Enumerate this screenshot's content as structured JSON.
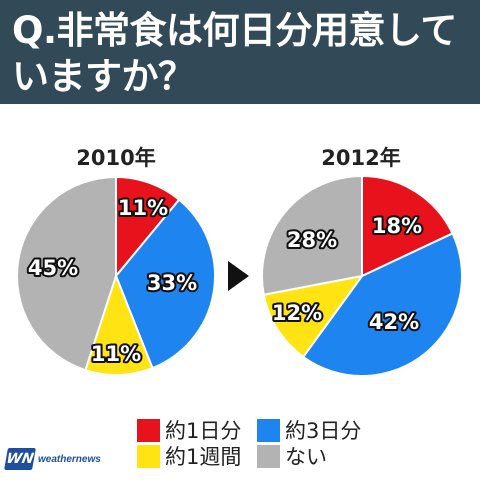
{
  "header": {
    "question": "Q.非常食は何日分用意していますか？"
  },
  "chart_data": [
    {
      "type": "pie",
      "title": "2010年",
      "series": [
        {
          "name": "約1日分",
          "value": 11,
          "label": "11%",
          "color": "#e8121d"
        },
        {
          "name": "約3日分",
          "value": 33,
          "label": "33%",
          "color": "#1e84f0"
        },
        {
          "name": "約1週間",
          "value": 11,
          "label": "11%",
          "color": "#ffe312"
        },
        {
          "name": "ない",
          "value": 45,
          "label": "45%",
          "color": "#b3b3b3"
        }
      ]
    },
    {
      "type": "pie",
      "title": "2012年",
      "series": [
        {
          "name": "約1日分",
          "value": 18,
          "label": "18%",
          "color": "#e8121d"
        },
        {
          "name": "約3日分",
          "value": 42,
          "label": "42%",
          "color": "#1e84f0"
        },
        {
          "name": "約1週間",
          "value": 12,
          "label": "12%",
          "color": "#ffe312"
        },
        {
          "name": "ない",
          "value": 28,
          "label": "28%",
          "color": "#b3b3b3"
        }
      ]
    }
  ],
  "legend": [
    {
      "label": "約1日分",
      "color": "#e8121d"
    },
    {
      "label": "約3日分",
      "color": "#1e84f0"
    },
    {
      "label": "約1週間",
      "color": "#ffe312"
    },
    {
      "label": "ない",
      "color": "#b3b3b3"
    }
  ],
  "logo": {
    "mark": "WN",
    "text": "weathernews"
  }
}
